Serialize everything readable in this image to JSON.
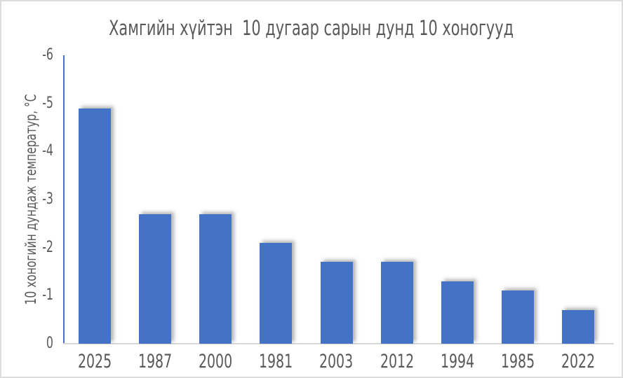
{
  "frame": {
    "background": "#ffffff",
    "border_color": "#dcdcdc"
  },
  "chart_data": {
    "type": "bar",
    "title": "Хамгийн хүйтэн  10 дугаар сарын дунд 10 хоногууд",
    "xlabel": "",
    "ylabel": "10 хоногийн дундаж температур, °C",
    "categories": [
      "2025",
      "1987",
      "2000",
      "1981",
      "2003",
      "2012",
      "1994",
      "1985",
      "2022"
    ],
    "values": [
      -4.9,
      -2.7,
      -2.7,
      -2.1,
      -1.7,
      -1.7,
      -1.3,
      -1.1,
      -0.7
    ],
    "ylim": [
      0,
      -6
    ],
    "y_axis_inverted": true,
    "y_ticks": [
      "-6",
      "-5",
      "-4",
      "-3",
      "-2",
      "-1",
      "0"
    ],
    "grid": false,
    "legend": null,
    "bar_color": "#4472C4",
    "y_axis_line_color": "#4472C4",
    "baseline_color": "#d9d9d9",
    "text_color": "#595959",
    "bar_shadow": "offset-right-blur"
  }
}
